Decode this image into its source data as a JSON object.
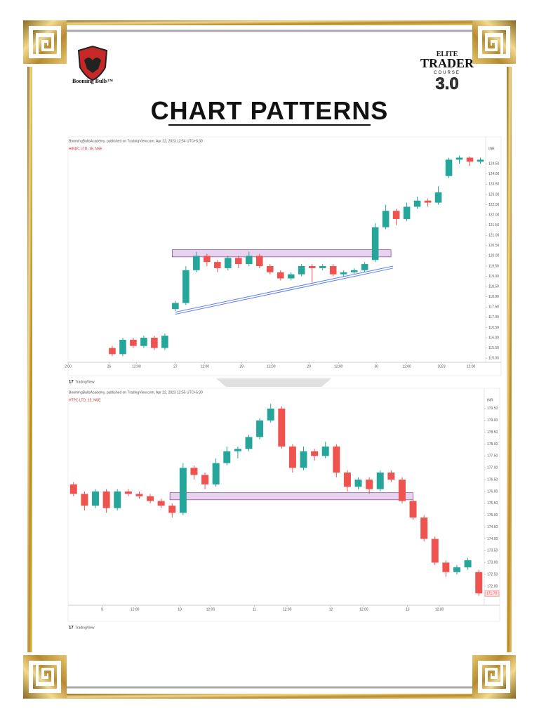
{
  "header": {
    "brand": "Booming Bulls™",
    "course": {
      "line1": "ELITE",
      "line2": "TRADER",
      "line3": "COURSE",
      "version": "3.0"
    }
  },
  "title": "CHART PATTERNS",
  "chart_data": [
    {
      "type": "candlestick",
      "source": "BoomingBullsAcademy, published on TradingView.com, Apr 22, 2023 12:54 UTC+5:30",
      "symbol": "HINDC LTD, 15, NSE",
      "currency": "INR",
      "footer": "TradingView",
      "up_color": "#26a69a",
      "down_color": "#ef5350",
      "xlim": [
        -4.2,
        35.5
      ],
      "ylim": [
        114.8,
        125.4
      ],
      "yticks": [
        {
          "value": 115,
          "label": "115.00"
        },
        {
          "value": 115.5,
          "label": "115.50"
        },
        {
          "value": 116,
          "label": "116.00"
        },
        {
          "value": 116.5,
          "label": "116.50"
        },
        {
          "value": 117,
          "label": "117.00"
        },
        {
          "value": 117.5,
          "label": "117.50"
        },
        {
          "value": 118,
          "label": "118.00"
        },
        {
          "value": 118.5,
          "label": "118.50"
        },
        {
          "value": 119,
          "label": "119.00"
        },
        {
          "value": 119.5,
          "label": "119.50"
        },
        {
          "value": 120,
          "label": "120.00"
        },
        {
          "value": 120.5,
          "label": "120.50"
        },
        {
          "value": 121,
          "label": "121.00"
        },
        {
          "value": 121.5,
          "label": "121.50"
        },
        {
          "value": 122,
          "label": "122.00"
        },
        {
          "value": 122.5,
          "label": "122.50"
        },
        {
          "value": 123,
          "label": "123.00"
        },
        {
          "value": 123.5,
          "label": "123.50"
        },
        {
          "value": 124,
          "label": "124.00"
        },
        {
          "value": 124.5,
          "label": "124.50"
        }
      ],
      "xticks": [
        {
          "value": -4.2,
          "label": "2:00"
        },
        {
          "value": -0.3,
          "label": "26"
        },
        {
          "value": 2.3,
          "label": "12:00"
        },
        {
          "value": 6,
          "label": "27"
        },
        {
          "value": 8.8,
          "label": "12:00"
        },
        {
          "value": 12.3,
          "label": "28"
        },
        {
          "value": 15.1,
          "label": "12:00"
        },
        {
          "value": 18.7,
          "label": "29"
        },
        {
          "value": 21.5,
          "label": "12:00"
        },
        {
          "value": 25.1,
          "label": "30"
        },
        {
          "value": 28,
          "label": "12:00"
        },
        {
          "value": 31.3,
          "label": "2023"
        },
        {
          "value": 34.1,
          "label": "12:00"
        }
      ],
      "open": [
        115.5,
        115.2,
        115.9,
        115.6,
        116.0,
        115.5,
        117.4,
        117.7,
        119.3,
        120.0,
        119.7,
        119.4,
        119.9,
        119.6,
        120.0,
        119.5,
        119.2,
        118.9,
        119.1,
        119.5,
        119.4,
        119.5,
        119.1,
        119.2,
        119.3,
        119.8,
        121.4,
        122.2,
        121.8,
        122.4,
        122.7,
        122.6,
        123.9,
        124.7,
        124.8,
        124.6
      ],
      "high": [
        115.6,
        116.0,
        116.0,
        116.1,
        116.1,
        116.2,
        117.8,
        119.5,
        120.2,
        120.1,
        119.8,
        120.0,
        120.0,
        120.2,
        120.1,
        119.6,
        119.3,
        119.2,
        119.6,
        119.6,
        119.6,
        119.6,
        119.3,
        119.4,
        119.7,
        121.6,
        122.5,
        122.3,
        122.6,
        122.9,
        122.8,
        123.4,
        124.8,
        124.9,
        124.85,
        124.8
      ],
      "low": [
        115.1,
        115.1,
        115.5,
        115.5,
        115.4,
        115.4,
        117.3,
        117.6,
        119.2,
        119.5,
        119.2,
        119.3,
        119.4,
        119.5,
        119.4,
        119.1,
        118.8,
        118.8,
        119.0,
        118.7,
        119.3,
        119.0,
        119.0,
        119.1,
        119.2,
        119.7,
        121.3,
        121.5,
        121.7,
        122.3,
        122.4,
        122.5,
        123.8,
        124.5,
        124.4,
        124.5
      ],
      "close": [
        115.2,
        115.9,
        115.6,
        116.0,
        115.5,
        116.1,
        117.7,
        119.3,
        120.0,
        119.7,
        119.4,
        119.9,
        119.6,
        120.0,
        119.5,
        119.2,
        118.9,
        119.1,
        119.5,
        119.4,
        119.5,
        119.1,
        119.2,
        119.3,
        119.6,
        121.4,
        122.2,
        121.8,
        122.4,
        122.7,
        122.6,
        123.1,
        124.7,
        124.8,
        124.6,
        124.7
      ],
      "zone": {
        "x": [
          5.7,
          26.5
        ],
        "y": [
          119.95,
          120.3
        ],
        "color": "#e8d3ef"
      },
      "trendline": {
        "x": [
          6,
          26.7
        ],
        "y": [
          117.2,
          119.45
        ],
        "color": "#5c7cfa"
      }
    },
    {
      "type": "candlestick",
      "source": "BoomingBullsAcademy, published on TradingView.com, Apr 22, 2023 12:55 UTC+5:30",
      "symbol": "HTPC LTD, 15, NSE",
      "currency": "INR",
      "footer": "TradingView",
      "up_color": "#26a69a",
      "down_color": "#ef5350",
      "xlim": [
        -0.5,
        37.5
      ],
      "ylim": [
        171.2,
        180.0
      ],
      "yticks": [
        {
          "value": 172,
          "label": "172.00"
        },
        {
          "value": 172.5,
          "label": "172.50"
        },
        {
          "value": 173,
          "label": "173.00"
        },
        {
          "value": 173.5,
          "label": "173.50"
        },
        {
          "value": 174,
          "label": "174.00"
        },
        {
          "value": 174.5,
          "label": "174.50"
        },
        {
          "value": 175,
          "label": "175.00"
        },
        {
          "value": 175.5,
          "label": "175.50"
        },
        {
          "value": 176,
          "label": "176.00"
        },
        {
          "value": 176.5,
          "label": "176.50"
        },
        {
          "value": 177,
          "label": "177.00"
        },
        {
          "value": 177.5,
          "label": "177.50"
        },
        {
          "value": 178,
          "label": "178.00"
        },
        {
          "value": 178.5,
          "label": "178.50"
        },
        {
          "value": 179,
          "label": "179.00"
        },
        {
          "value": 179.5,
          "label": "179.50"
        }
      ],
      "xticks": [
        {
          "value": 2.6,
          "label": "9"
        },
        {
          "value": 5.6,
          "label": "12:00"
        },
        {
          "value": 9.7,
          "label": "10"
        },
        {
          "value": 12.5,
          "label": "12:00"
        },
        {
          "value": 16.5,
          "label": "11"
        },
        {
          "value": 19.5,
          "label": "12:00"
        },
        {
          "value": 23.5,
          "label": "12"
        },
        {
          "value": 26.5,
          "label": "12:00"
        },
        {
          "value": 30.5,
          "label": "13"
        },
        {
          "value": 33.4,
          "label": "12:00"
        }
      ],
      "open": [
        176.3,
        175.9,
        175.4,
        176.0,
        175.3,
        176.0,
        175.9,
        175.8,
        175.6,
        175.4,
        175.1,
        177.0,
        176.7,
        176.3,
        177.2,
        177.7,
        177.8,
        178.3,
        179.0,
        179.5,
        177.9,
        177.0,
        177.7,
        177.5,
        177.9,
        176.8,
        176.2,
        176.5,
        176.1,
        176.8,
        176.5,
        175.6,
        174.9,
        174.0,
        173.0,
        172.6,
        172.8,
        172.6
      ],
      "high": [
        176.4,
        176.0,
        176.1,
        176.1,
        176.1,
        176.1,
        176.0,
        175.9,
        175.7,
        175.5,
        177.2,
        177.1,
        176.8,
        177.4,
        177.9,
        177.9,
        178.4,
        179.1,
        179.7,
        179.6,
        178.0,
        177.9,
        177.8,
        178.1,
        178.0,
        176.9,
        176.6,
        176.6,
        176.9,
        176.9,
        176.6,
        175.7,
        175.0,
        174.1,
        173.1,
        172.9,
        173.2,
        172.7
      ],
      "low": [
        175.8,
        175.2,
        175.3,
        175.1,
        175.2,
        175.8,
        175.7,
        175.5,
        175.3,
        174.9,
        175.0,
        176.5,
        176.1,
        176.2,
        177.1,
        177.4,
        177.7,
        178.2,
        178.9,
        177.8,
        176.8,
        176.9,
        177.3,
        177.4,
        176.6,
        176.0,
        176.1,
        175.9,
        176.0,
        176.4,
        175.5,
        174.8,
        173.9,
        172.9,
        172.4,
        172.5,
        172.7,
        171.6
      ],
      "close": [
        175.9,
        175.4,
        176.0,
        175.3,
        176.0,
        175.9,
        175.8,
        175.6,
        175.4,
        175.1,
        177.0,
        176.7,
        176.3,
        177.2,
        177.7,
        177.8,
        178.3,
        179.0,
        179.5,
        177.9,
        177.0,
        177.7,
        177.5,
        177.9,
        176.8,
        176.2,
        176.5,
        176.1,
        176.8,
        176.5,
        175.6,
        174.9,
        174.0,
        173.0,
        172.6,
        172.8,
        173.1,
        171.7
      ],
      "last_price": {
        "value": 171.7,
        "label": "171.70"
      },
      "zone": {
        "x": [
          8.8,
          31.0
        ],
        "y": [
          175.65,
          175.95
        ],
        "color": "#e8d3ef"
      }
    }
  ]
}
